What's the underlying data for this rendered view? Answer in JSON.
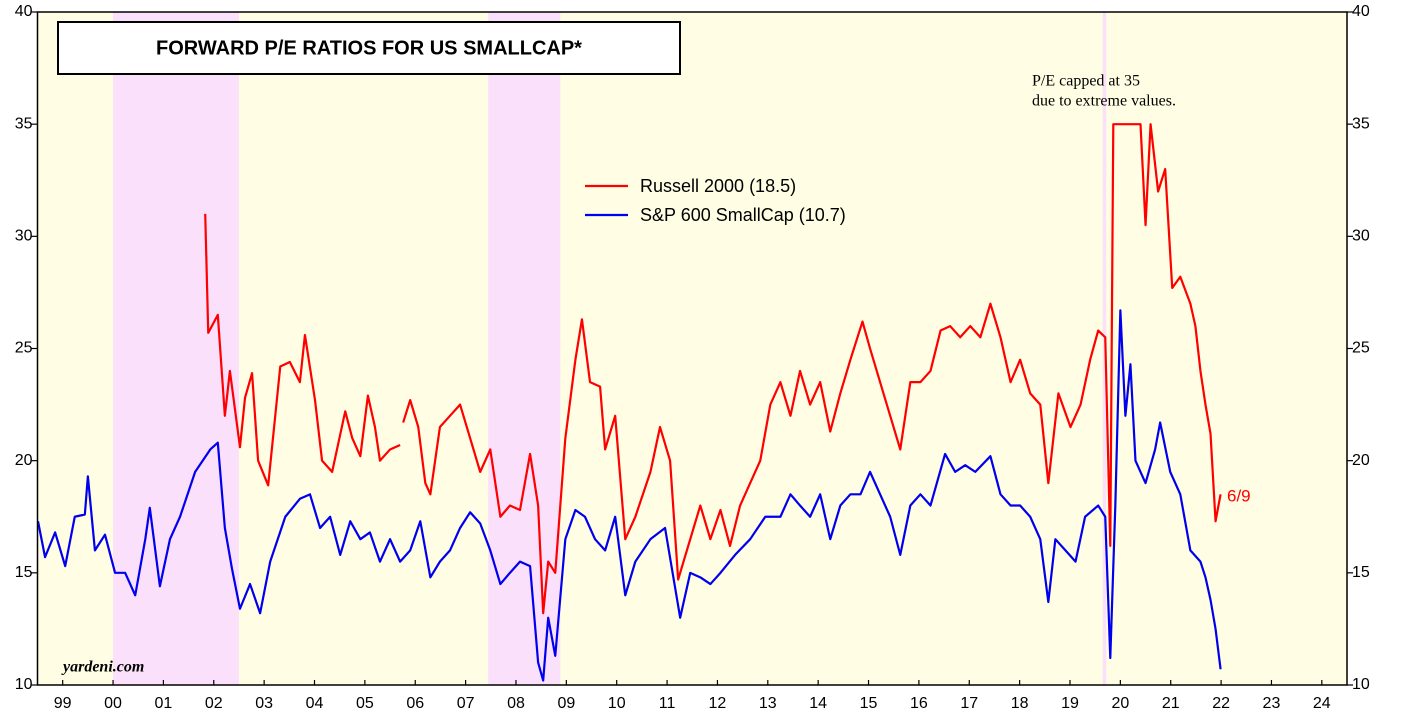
{
  "chart_data": {
    "type": "line",
    "title": "FORWARD P/E RATIOS FOR US SMALLCAP*",
    "annotation": [
      "P/E capped at 35",
      "due to extreme values."
    ],
    "end_label": "6/9",
    "source": "yardeni.com",
    "xlim": [
      1999,
      2025
    ],
    "ylim": [
      10,
      40
    ],
    "yticks": [
      10,
      15,
      20,
      25,
      30,
      35,
      40
    ],
    "xticks": [
      {
        "value": 1999.5,
        "label": "99"
      },
      {
        "value": 2000.5,
        "label": "00"
      },
      {
        "value": 2001.5,
        "label": "01"
      },
      {
        "value": 2002.5,
        "label": "02"
      },
      {
        "value": 2003.5,
        "label": "03"
      },
      {
        "value": 2004.5,
        "label": "04"
      },
      {
        "value": 2005.5,
        "label": "05"
      },
      {
        "value": 2006.5,
        "label": "06"
      },
      {
        "value": 2007.5,
        "label": "07"
      },
      {
        "value": 2008.5,
        "label": "08"
      },
      {
        "value": 2009.5,
        "label": "09"
      },
      {
        "value": 2010.5,
        "label": "10"
      },
      {
        "value": 2011.5,
        "label": "11"
      },
      {
        "value": 2012.5,
        "label": "12"
      },
      {
        "value": 2013.5,
        "label": "13"
      },
      {
        "value": 2014.5,
        "label": "14"
      },
      {
        "value": 2015.5,
        "label": "15"
      },
      {
        "value": 2016.5,
        "label": "16"
      },
      {
        "value": 2017.5,
        "label": "17"
      },
      {
        "value": 2018.5,
        "label": "18"
      },
      {
        "value": 2019.5,
        "label": "19"
      },
      {
        "value": 2020.5,
        "label": "20"
      },
      {
        "value": 2021.5,
        "label": "21"
      },
      {
        "value": 2022.5,
        "label": "22"
      },
      {
        "value": 2023.5,
        "label": "23"
      },
      {
        "value": 2024.5,
        "label": "24"
      }
    ],
    "shaded_regions": [
      {
        "start": 2000.5,
        "end": 2003.0
      },
      {
        "start": 2007.95,
        "end": 2009.38
      },
      {
        "start": 2020.15,
        "end": 2020.22
      }
    ],
    "background_color": "#fffde3",
    "shade_color": "#fbe0fb",
    "series": [
      {
        "name": "Russell 2000 (18.5)",
        "color": "#ff0000",
        "x": [
          2002.33,
          2002.39,
          2002.58,
          2002.72,
          2002.82,
          2003.02,
          2003.12,
          2003.26,
          2003.38,
          2003.58,
          2003.82,
          2004.01,
          2004.21,
          2004.31,
          2004.51,
          2004.65,
          2004.85,
          2005.11,
          2005.25,
          2005.41,
          2005.56,
          2005.7,
          2005.8,
          2006.0,
          2006.2,
          2006.23,
          2006.26,
          2006.4,
          2006.56,
          2006.7,
          2006.8,
          2006.99,
          2007.19,
          2007.39,
          2007.59,
          2007.79,
          2007.99,
          2008.19,
          2008.38,
          2008.58,
          2008.78,
          2008.94,
          2009.04,
          2009.14,
          2009.28,
          2009.48,
          2009.68,
          2009.81,
          2009.97,
          2010.17,
          2010.27,
          2010.47,
          2010.67,
          2010.87,
          2011.17,
          2011.36,
          2011.56,
          2011.72,
          2011.96,
          2012.16,
          2012.36,
          2012.56,
          2012.75,
          2012.95,
          2013.15,
          2013.35,
          2013.55,
          2013.75,
          2013.95,
          2014.14,
          2014.34,
          2014.54,
          2014.74,
          2014.94,
          2015.14,
          2015.38,
          2015.53,
          2015.73,
          2015.93,
          2016.13,
          2016.33,
          2016.53,
          2016.73,
          2016.93,
          2017.12,
          2017.32,
          2017.52,
          2017.72,
          2017.92,
          2018.12,
          2018.32,
          2018.51,
          2018.71,
          2018.91,
          2019.07,
          2019.27,
          2019.51,
          2019.71,
          2019.9,
          2020.06,
          2020.2,
          2020.3,
          2020.36,
          2020.9,
          2021.0,
          2021.1,
          2021.25,
          2021.39,
          2021.53,
          2021.69,
          2021.89,
          2021.99,
          2022.09,
          2022.19,
          2022.29,
          2022.39,
          2022.49
        ],
        "values": [
          31,
          25.7,
          26.5,
          22,
          24,
          20.6,
          22.8,
          23.9,
          20,
          18.9,
          24.2,
          24.4,
          23.5,
          25.6,
          22.7,
          20,
          19.5,
          22.2,
          21,
          20.2,
          22.9,
          21.5,
          20,
          20.5,
          20.7,
          null,
          21.7,
          22.7,
          21.5,
          19,
          18.5,
          21.5,
          22,
          22.5,
          21,
          19.5,
          20.5,
          17.5,
          18,
          17.8,
          20.3,
          18,
          13.2,
          15.5,
          15,
          21,
          24.5,
          26.3,
          23.5,
          23.3,
          20.5,
          22,
          16.5,
          17.5,
          19.5,
          21.5,
          20,
          14.7,
          16.5,
          18,
          16.5,
          17.8,
          16.2,
          18,
          19,
          20,
          22.5,
          23.5,
          22,
          24,
          22.5,
          23.5,
          21.3,
          23,
          24.5,
          26.2,
          25,
          23.5,
          22,
          20.5,
          23.5,
          23.5,
          24,
          25.8,
          26,
          25.5,
          26,
          25.5,
          27,
          25.5,
          23.5,
          24.5,
          23,
          22.5,
          19,
          23,
          21.5,
          22.5,
          24.5,
          25.8,
          25.5,
          16.2,
          35,
          35,
          30.5,
          35,
          32,
          33,
          27.7,
          28.2,
          27,
          26,
          24,
          22.5,
          21.2,
          17.3,
          18.5
        ]
      },
      {
        "name": "S&P 600 SmallCap (10.7)",
        "color": "#0000ee",
        "x": [
          1999.01,
          1999.15,
          1999.35,
          1999.55,
          1999.74,
          1999.94,
          2000.0,
          2000.14,
          2000.34,
          2000.54,
          2000.74,
          2000.94,
          2001.14,
          2001.23,
          2001.43,
          2001.63,
          2001.83,
          2002.13,
          2002.43,
          2002.58,
          2002.72,
          2002.86,
          2003.02,
          2003.22,
          2003.42,
          2003.62,
          2003.92,
          2004.21,
          2004.41,
          2004.61,
          2004.81,
          2005.01,
          2005.21,
          2005.41,
          2005.6,
          2005.8,
          2006.0,
          2006.2,
          2006.4,
          2006.6,
          2006.8,
          2006.99,
          2007.19,
          2007.39,
          2007.59,
          2007.79,
          2007.99,
          2008.19,
          2008.38,
          2008.58,
          2008.78,
          2008.94,
          2009.04,
          2009.14,
          2009.28,
          2009.48,
          2009.68,
          2009.87,
          2010.07,
          2010.27,
          2010.47,
          2010.67,
          2010.87,
          2011.17,
          2011.46,
          2011.76,
          2011.96,
          2012.16,
          2012.36,
          2012.56,
          2012.85,
          2013.15,
          2013.45,
          2013.75,
          2013.95,
          2014.14,
          2014.34,
          2014.54,
          2014.74,
          2014.94,
          2015.14,
          2015.34,
          2015.53,
          2015.73,
          2015.93,
          2016.13,
          2016.33,
          2016.53,
          2016.73,
          2017.02,
          2017.22,
          2017.42,
          2017.62,
          2017.92,
          2018.12,
          2018.32,
          2018.51,
          2018.71,
          2018.91,
          2019.07,
          2019.21,
          2019.41,
          2019.61,
          2019.8,
          2020.06,
          2020.2,
          2020.3,
          2020.4,
          2020.5,
          2020.6,
          2020.7,
          2020.8,
          2021.0,
          2021.19,
          2021.29,
          2021.49,
          2021.69,
          2021.89,
          2022.09,
          2022.19,
          2022.29,
          2022.39,
          2022.49
        ],
        "values": [
          17.3,
          15.7,
          16.8,
          15.3,
          17.5,
          17.6,
          19.3,
          16,
          16.7,
          15,
          15,
          14,
          16.5,
          17.9,
          14.4,
          16.5,
          17.5,
          19.5,
          20.5,
          20.8,
          17,
          15.2,
          13.4,
          14.5,
          13.2,
          15.5,
          17.5,
          18.3,
          18.5,
          17,
          17.5,
          15.8,
          17.3,
          16.5,
          16.8,
          15.5,
          16.5,
          15.5,
          16,
          17.3,
          14.8,
          15.5,
          16,
          17,
          17.7,
          17.2,
          16,
          14.5,
          15,
          15.5,
          15.3,
          11,
          10.2,
          13,
          11.3,
          16.5,
          17.8,
          17.5,
          16.5,
          16,
          17.5,
          14,
          15.5,
          16.5,
          17,
          13,
          15,
          14.8,
          14.5,
          15,
          15.8,
          16.5,
          17.5,
          17.5,
          18.5,
          18,
          17.5,
          18.5,
          16.5,
          18,
          18.5,
          18.5,
          19.5,
          18.5,
          17.5,
          15.8,
          18,
          18.5,
          18,
          20.3,
          19.5,
          19.8,
          19.5,
          20.2,
          18.5,
          18,
          18,
          17.5,
          16.5,
          13.7,
          16.5,
          16,
          15.5,
          17.5,
          18,
          17.5,
          11.2,
          18,
          26.7,
          22,
          24.3,
          20,
          19,
          20.5,
          21.7,
          19.5,
          18.5,
          16,
          15.5,
          14.8,
          13.8,
          12.5,
          10.7
        ]
      }
    ]
  }
}
